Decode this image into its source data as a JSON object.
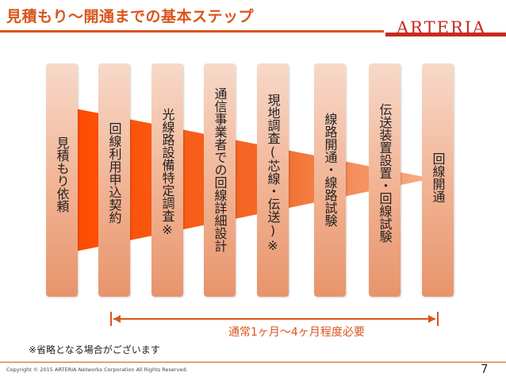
{
  "header": {
    "title": "見積もり〜開通までの基本ステップ",
    "brand": "ARTERIA"
  },
  "steps": [
    {
      "label": "見積もり依頼"
    },
    {
      "label": "回線利用申込契約"
    },
    {
      "label": "光線路設備特定調査※"
    },
    {
      "label": "通信事業者での回線詳細設計"
    },
    {
      "label": "現地調査(芯線・伝送)※"
    },
    {
      "label": "線路開通・線路試験"
    },
    {
      "label": "伝送装置設置・回線試験"
    },
    {
      "label": "回線開通"
    }
  ],
  "duration": {
    "label": "通常1ヶ月〜4ヶ月程度必要"
  },
  "note": "※省略となる場合がございます",
  "footer": {
    "copyright": "Copyright © 2015 ARTERIA Networks Corporation All Rights Reserved.",
    "page_number": "7"
  },
  "colors": {
    "accent": "#d9551a",
    "brand": "#c82a1e",
    "funnel": "#f04a0a",
    "step_top": "#f7d9c9",
    "step_bottom": "#e8946c"
  }
}
